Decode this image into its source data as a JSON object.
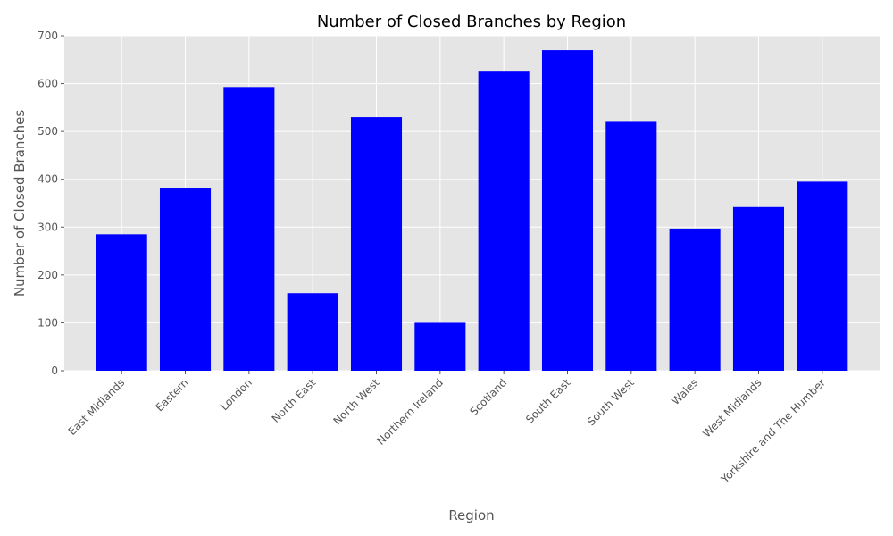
{
  "chart_data": {
    "type": "bar",
    "title": "Number of Closed Branches by Region",
    "xlabel": "Region",
    "ylabel": "Number of Closed Branches",
    "categories": [
      "East Midlands",
      "Eastern",
      "London",
      "North East",
      "North West",
      "Northern Ireland",
      "Scotland",
      "South East",
      "South West",
      "Wales",
      "West Midlands",
      "Yorkshire and The Humber"
    ],
    "values": [
      285,
      382,
      593,
      162,
      530,
      100,
      625,
      670,
      520,
      297,
      342,
      395
    ],
    "ylim": [
      0,
      700
    ],
    "yticks": [
      "0",
      "100",
      "200",
      "300",
      "400",
      "500",
      "600",
      "700"
    ],
    "grid": true,
    "bar_color": "#0000ff",
    "plot_background": "#e5e5e5"
  }
}
